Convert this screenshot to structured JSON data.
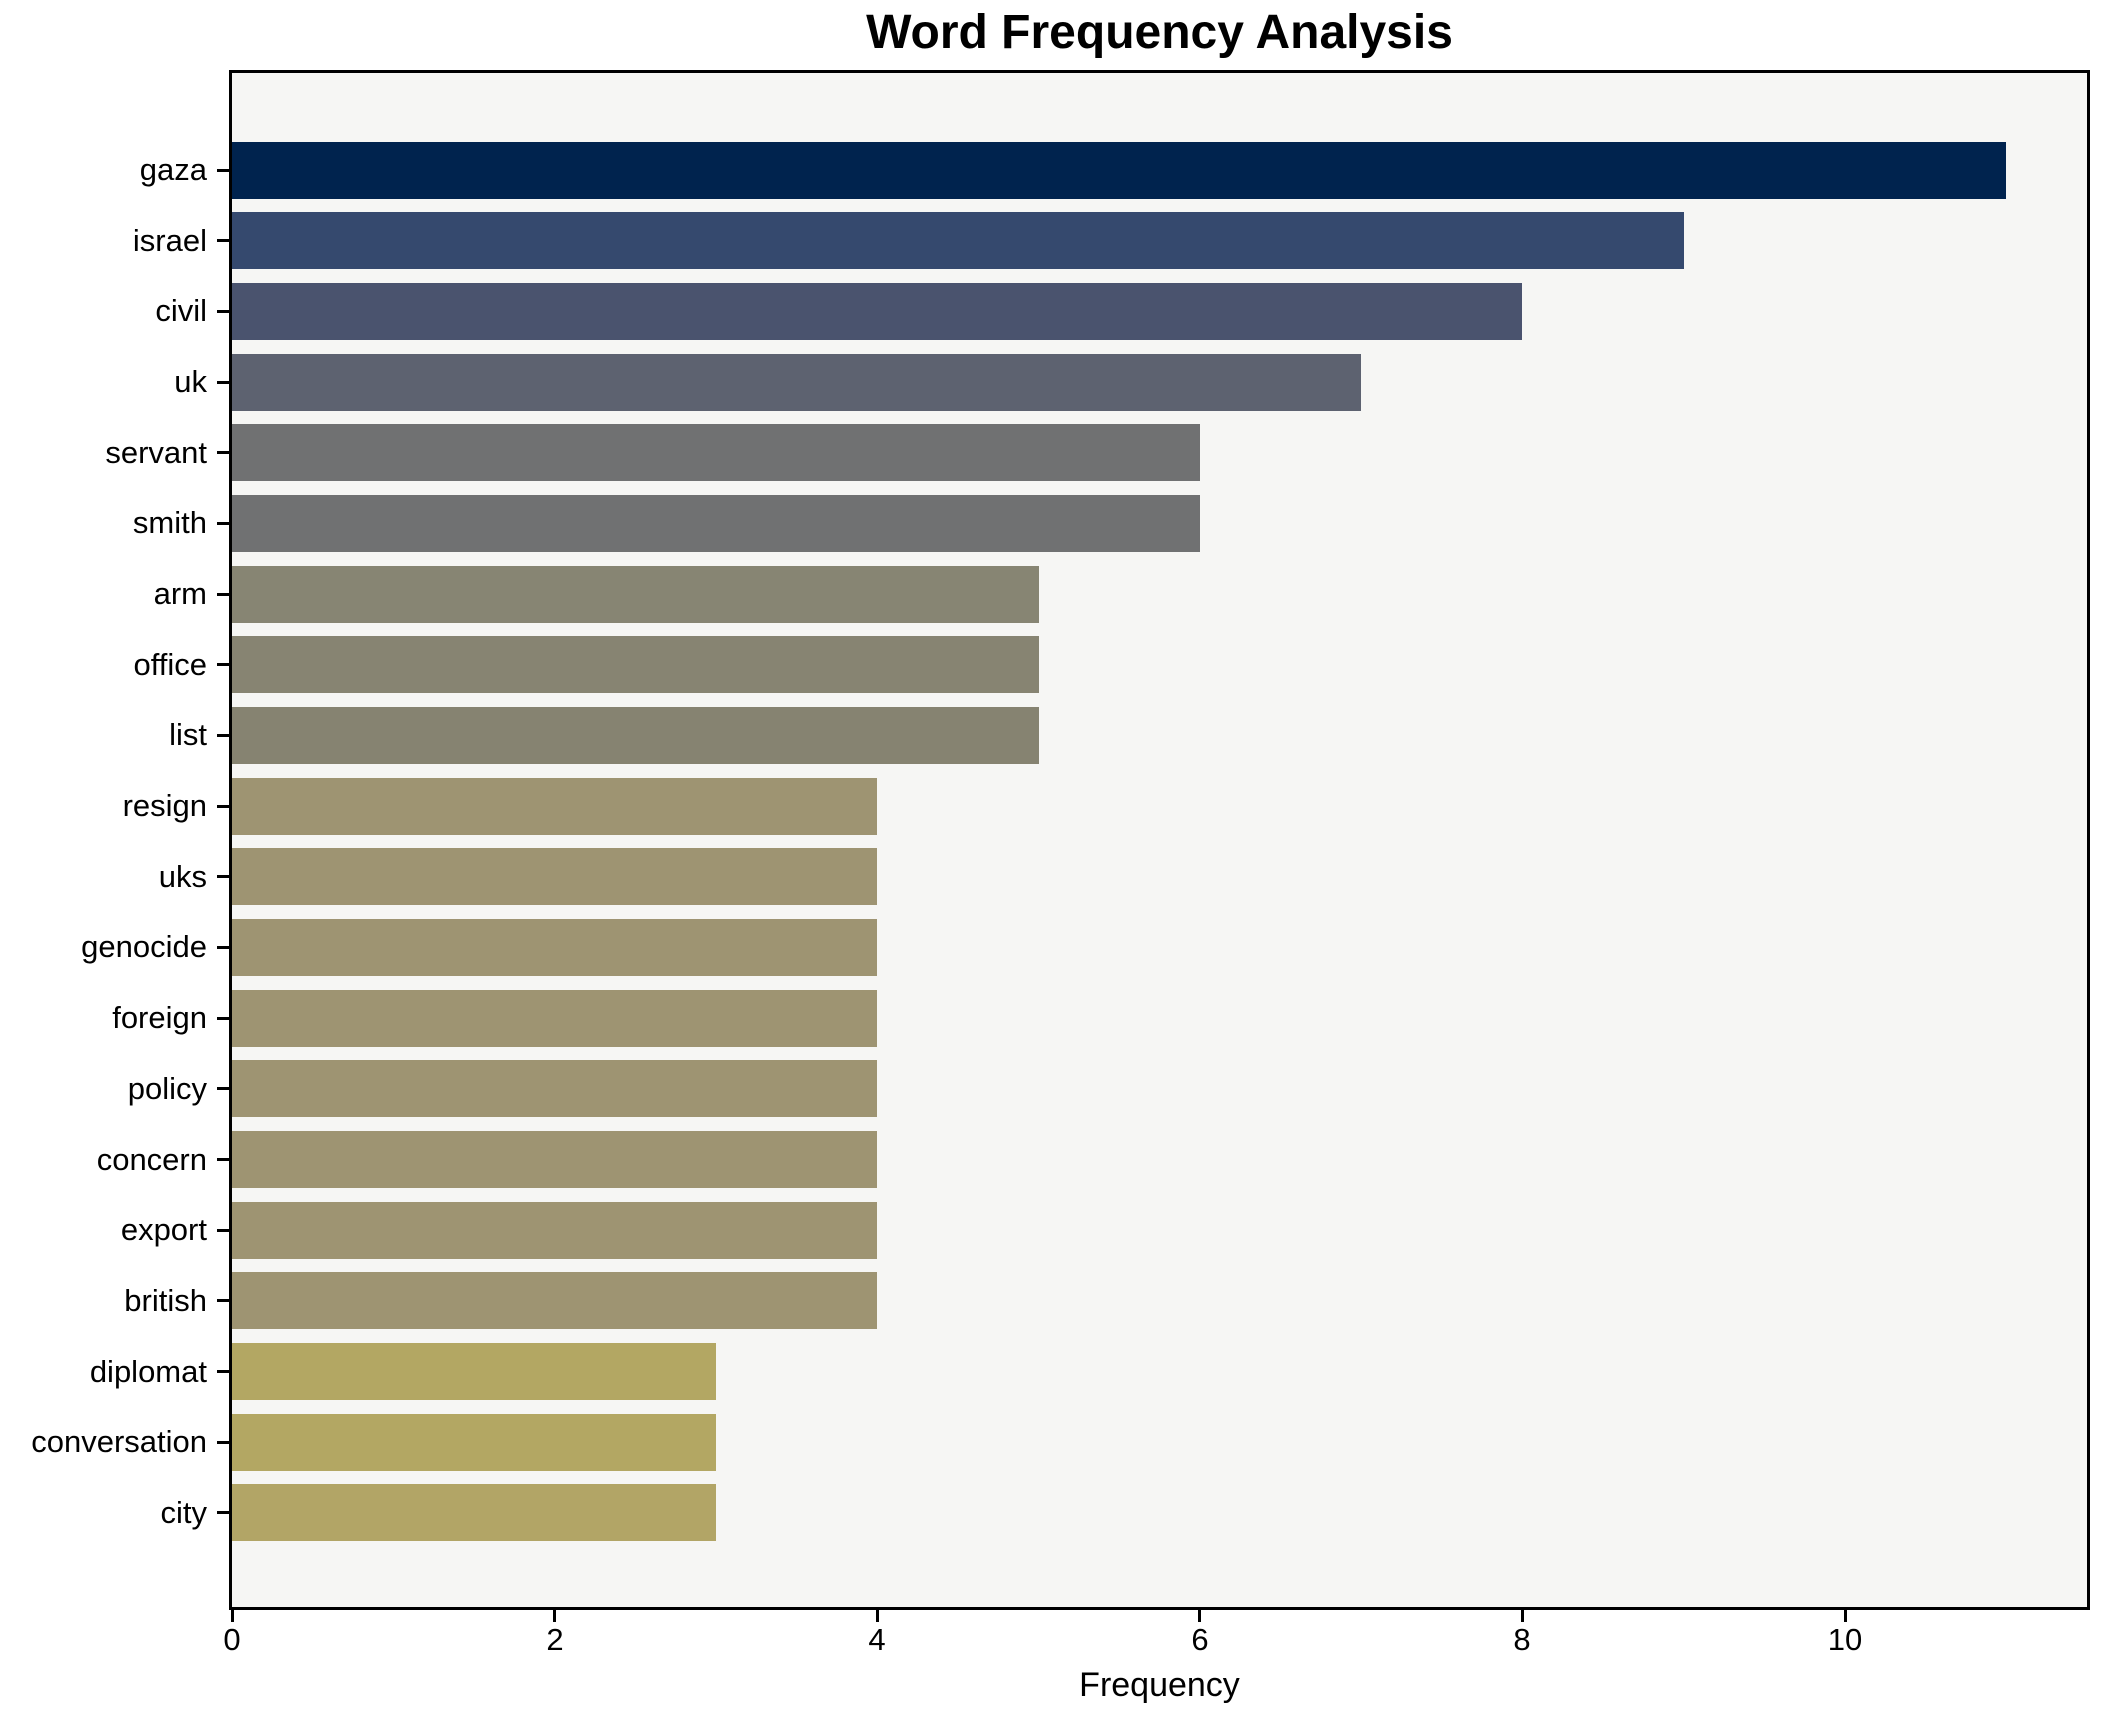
{
  "chart_data": {
    "type": "bar",
    "orientation": "horizontal",
    "title": "Word Frequency Analysis",
    "xlabel": "Frequency",
    "ylabel": "",
    "categories": [
      "gaza",
      "israel",
      "civil",
      "uk",
      "servant",
      "smith",
      "arm",
      "office",
      "list",
      "resign",
      "uks",
      "genocide",
      "foreign",
      "policy",
      "concern",
      "export",
      "british",
      "diplomat",
      "conversation",
      "city"
    ],
    "values": [
      11,
      9,
      8,
      7,
      6,
      6,
      5,
      5,
      5,
      4,
      4,
      4,
      4,
      4,
      4,
      4,
      4,
      3,
      3,
      3
    ],
    "bar_colors": [
      "#00234e",
      "#35496e",
      "#4a536e",
      "#5d6270",
      "#707172",
      "#707172",
      "#878573",
      "#878472",
      "#868371",
      "#9e9472",
      "#9e9472",
      "#9e9472",
      "#9e9472",
      "#9e9472",
      "#9e9472",
      "#9e9472",
      "#9e9472",
      "#b3a763",
      "#b3a763",
      "#b2a566"
    ],
    "xlim": [
      0,
      11.5
    ],
    "xticks": [
      0,
      2,
      4,
      6,
      8,
      10
    ],
    "grid": false,
    "legend_position": "none"
  },
  "style": {
    "figure_background": "#ffffff",
    "axes_background": "#f6f6f4",
    "spine_color": "#000000",
    "text_color": "#000000"
  }
}
